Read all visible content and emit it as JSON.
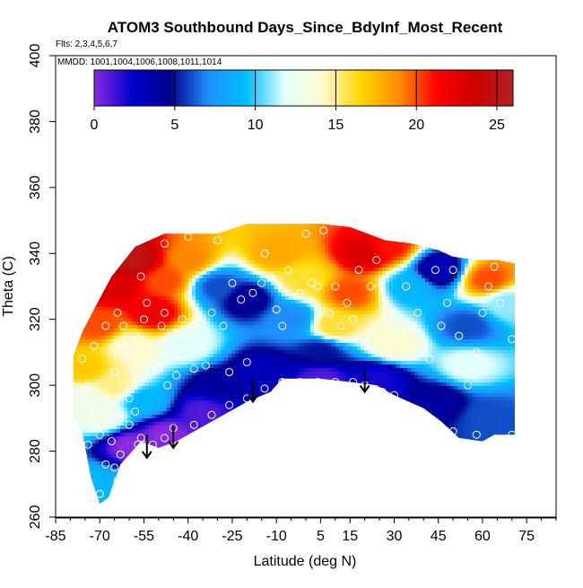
{
  "chart_data": {
    "type": "heatmap",
    "title": "ATOM3 Southbound Days_Since_BdyInf_Most_Recent",
    "flights_note": "Flts: 2,3,4,5,6,7",
    "dates_note": "MMDD: 1001,1004,1006,1008,1011,1014",
    "xlabel": "Latitude (deg N)",
    "ylabel": "Theta (C)",
    "xlim": [
      -85,
      85
    ],
    "ylim": [
      260,
      400
    ],
    "x_ticks": [
      -85,
      -70,
      -55,
      -40,
      -25,
      -10,
      5,
      15,
      30,
      45,
      60,
      75
    ],
    "y_ticks": [
      260,
      280,
      300,
      320,
      340,
      360,
      380,
      400
    ],
    "colorbar": {
      "min": 0,
      "max": 26,
      "ticks": [
        0,
        5,
        10,
        15,
        20,
        25
      ],
      "colors": [
        "#8a2be2",
        "#0000cd",
        "#00008b",
        "#1e90ff",
        "#00bfff",
        "#e0ffff",
        "#fffacd",
        "#ffd700",
        "#ff8c00",
        "#ff0000",
        "#cc0000",
        "#b22222"
      ]
    },
    "domain_outline": [
      [
        -79,
        309
      ],
      [
        -79,
        290
      ],
      [
        -76,
        286
      ],
      [
        -73,
        272
      ],
      [
        -70,
        264
      ],
      [
        -67,
        266
      ],
      [
        -63,
        276
      ],
      [
        -56,
        283
      ],
      [
        -50,
        281
      ],
      [
        -44,
        283
      ],
      [
        -36,
        287
      ],
      [
        -28,
        291
      ],
      [
        -20,
        295
      ],
      [
        -12,
        298
      ],
      [
        -8,
        302
      ],
      [
        5,
        302
      ],
      [
        15,
        301
      ],
      [
        24,
        300
      ],
      [
        30,
        297
      ],
      [
        40,
        293
      ],
      [
        46,
        289
      ],
      [
        52,
        284
      ],
      [
        60,
        283
      ],
      [
        64,
        285
      ],
      [
        71,
        285
      ],
      [
        71,
        337
      ],
      [
        65,
        338
      ],
      [
        58,
        338
      ],
      [
        50,
        339
      ],
      [
        45,
        341
      ],
      [
        36,
        343
      ],
      [
        27,
        344
      ],
      [
        15,
        348
      ],
      [
        5,
        349
      ],
      [
        -8,
        349
      ],
      [
        -20,
        349
      ],
      [
        -30,
        346
      ],
      [
        -40,
        346
      ],
      [
        -48,
        346
      ],
      [
        -58,
        342
      ],
      [
        -66,
        333
      ],
      [
        -72,
        323
      ],
      [
        -76,
        316
      ]
    ],
    "field_points": [
      {
        "lat": -75,
        "theta": 305,
        "days": 17
      },
      {
        "lat": -70,
        "theta": 318,
        "days": 20
      },
      {
        "lat": -65,
        "theta": 330,
        "days": 23
      },
      {
        "lat": -58,
        "theta": 338,
        "days": 25
      },
      {
        "lat": -52,
        "theta": 322,
        "days": 22
      },
      {
        "lat": -60,
        "theta": 312,
        "days": 14
      },
      {
        "lat": -48,
        "theta": 332,
        "days": 20
      },
      {
        "lat": -40,
        "theta": 338,
        "days": 19
      },
      {
        "lat": -30,
        "theta": 330,
        "days": 6
      },
      {
        "lat": -20,
        "theta": 326,
        "days": 4
      },
      {
        "lat": -10,
        "theta": 340,
        "days": 18
      },
      {
        "lat": 0,
        "theta": 332,
        "days": 16
      },
      {
        "lat": -5,
        "theta": 320,
        "days": 7
      },
      {
        "lat": 5,
        "theta": 310,
        "days": 5
      },
      {
        "lat": 20,
        "theta": 340,
        "days": 23
      },
      {
        "lat": 28,
        "theta": 342,
        "days": 21
      },
      {
        "lat": 15,
        "theta": 328,
        "days": 20
      },
      {
        "lat": 35,
        "theta": 330,
        "days": 9
      },
      {
        "lat": 45,
        "theta": 335,
        "days": 3
      },
      {
        "lat": 55,
        "theta": 318,
        "days": 6
      },
      {
        "lat": 62,
        "theta": 332,
        "days": 20
      },
      {
        "lat": 68,
        "theta": 325,
        "days": 11
      },
      {
        "lat": -40,
        "theta": 312,
        "days": 12
      },
      {
        "lat": -30,
        "theta": 300,
        "days": 4
      },
      {
        "lat": -15,
        "theta": 304,
        "days": 3
      },
      {
        "lat": 5,
        "theta": 302,
        "days": 1
      },
      {
        "lat": 25,
        "theta": 302,
        "days": 2
      },
      {
        "lat": 45,
        "theta": 295,
        "days": 4
      },
      {
        "lat": 62,
        "theta": 290,
        "days": 6
      },
      {
        "lat": -55,
        "theta": 295,
        "days": 9
      },
      {
        "lat": -68,
        "theta": 290,
        "days": 13
      },
      {
        "lat": -60,
        "theta": 282,
        "days": 0
      },
      {
        "lat": -48,
        "theta": 285,
        "days": 0
      },
      {
        "lat": -72,
        "theta": 270,
        "days": 9
      },
      {
        "lat": -35,
        "theta": 292,
        "days": 1
      },
      {
        "lat": 10,
        "theta": 318,
        "days": 16
      },
      {
        "lat": -75,
        "theta": 296,
        "days": 13
      },
      {
        "lat": -65,
        "theta": 300,
        "days": 15
      },
      {
        "lat": 30,
        "theta": 312,
        "days": 14
      },
      {
        "lat": 55,
        "theta": 306,
        "days": 12
      }
    ],
    "observations": [
      {
        "lat": -70,
        "theta": 267
      },
      {
        "lat": -68,
        "theta": 276
      },
      {
        "lat": -66,
        "theta": 283
      },
      {
        "lat": -65,
        "theta": 275
      },
      {
        "lat": -63,
        "theta": 279
      },
      {
        "lat": -60,
        "theta": 288
      },
      {
        "lat": -58,
        "theta": 292
      },
      {
        "lat": -57,
        "theta": 282
      },
      {
        "lat": -56,
        "theta": 284
      },
      {
        "lat": -55,
        "theta": 282
      },
      {
        "lat": -52,
        "theta": 282
      },
      {
        "lat": -51,
        "theta": 279
      },
      {
        "lat": -48,
        "theta": 284
      },
      {
        "lat": -45,
        "theta": 287
      },
      {
        "lat": -60,
        "theta": 296
      },
      {
        "lat": -62,
        "theta": 300
      },
      {
        "lat": -65,
        "theta": 304
      },
      {
        "lat": -68,
        "theta": 296
      },
      {
        "lat": -72,
        "theta": 293
      },
      {
        "lat": -74,
        "theta": 300
      },
      {
        "lat": -76,
        "theta": 308
      },
      {
        "lat": -72,
        "theta": 312
      },
      {
        "lat": -68,
        "theta": 318
      },
      {
        "lat": -64,
        "theta": 322
      },
      {
        "lat": -62,
        "theta": 318
      },
      {
        "lat": -60,
        "theta": 310
      },
      {
        "lat": -58,
        "theta": 304
      },
      {
        "lat": -57,
        "theta": 314
      },
      {
        "lat": -55,
        "theta": 320
      },
      {
        "lat": -54,
        "theta": 325
      },
      {
        "lat": -53,
        "theta": 312
      },
      {
        "lat": -51,
        "theta": 306
      },
      {
        "lat": -49,
        "theta": 318
      },
      {
        "lat": -48,
        "theta": 322
      },
      {
        "lat": -46,
        "theta": 312
      },
      {
        "lat": -44,
        "theta": 309
      },
      {
        "lat": -42,
        "theta": 320
      },
      {
        "lat": -40,
        "theta": 327
      },
      {
        "lat": -38,
        "theta": 318
      },
      {
        "lat": -36,
        "theta": 312
      },
      {
        "lat": -32,
        "theta": 322
      },
      {
        "lat": -28,
        "theta": 318
      },
      {
        "lat": -25,
        "theta": 331
      },
      {
        "lat": -22,
        "theta": 326
      },
      {
        "lat": -18,
        "theta": 328
      },
      {
        "lat": -14,
        "theta": 340
      },
      {
        "lat": -12,
        "theta": 333
      },
      {
        "lat": -10,
        "theta": 323
      },
      {
        "lat": -8,
        "theta": 318
      },
      {
        "lat": -6,
        "theta": 335
      },
      {
        "lat": -2,
        "theta": 328
      },
      {
        "lat": 0,
        "theta": 346
      },
      {
        "lat": 2,
        "theta": 331
      },
      {
        "lat": 4,
        "theta": 330
      },
      {
        "lat": 6,
        "theta": 347
      },
      {
        "lat": 8,
        "theta": 322
      },
      {
        "lat": 10,
        "theta": 330
      },
      {
        "lat": 12,
        "theta": 318
      },
      {
        "lat": 14,
        "theta": 325
      },
      {
        "lat": 16,
        "theta": 320
      },
      {
        "lat": 18,
        "theta": 335
      },
      {
        "lat": 20,
        "theta": 312
      },
      {
        "lat": 22,
        "theta": 330
      },
      {
        "lat": 24,
        "theta": 338
      },
      {
        "lat": 26,
        "theta": 325
      },
      {
        "lat": 28,
        "theta": 310
      },
      {
        "lat": 30,
        "theta": 322
      },
      {
        "lat": 32,
        "theta": 315
      },
      {
        "lat": 34,
        "theta": 330
      },
      {
        "lat": 36,
        "theta": 318
      },
      {
        "lat": 38,
        "theta": 322
      },
      {
        "lat": 40,
        "theta": 310
      },
      {
        "lat": 42,
        "theta": 308
      },
      {
        "lat": 44,
        "theta": 335
      },
      {
        "lat": 46,
        "theta": 318
      },
      {
        "lat": 48,
        "theta": 325
      },
      {
        "lat": 50,
        "theta": 335
      },
      {
        "lat": 52,
        "theta": 315
      },
      {
        "lat": 55,
        "theta": 300
      },
      {
        "lat": 58,
        "theta": 310
      },
      {
        "lat": 60,
        "theta": 322
      },
      {
        "lat": 62,
        "theta": 330
      },
      {
        "lat": 64,
        "theta": 336
      },
      {
        "lat": 66,
        "theta": 325
      },
      {
        "lat": 70,
        "theta": 314
      },
      {
        "lat": 70,
        "theta": 285
      },
      {
        "lat": 58,
        "theta": 285
      },
      {
        "lat": 50,
        "theta": 286
      },
      {
        "lat": 45,
        "theta": 285
      },
      {
        "lat": 40,
        "theta": 290
      },
      {
        "lat": 35,
        "theta": 293
      },
      {
        "lat": 30,
        "theta": 297
      },
      {
        "lat": 26,
        "theta": 298
      },
      {
        "lat": 20,
        "theta": 300
      },
      {
        "lat": 16,
        "theta": 301
      },
      {
        "lat": 10,
        "theta": 301
      },
      {
        "lat": 4,
        "theta": 301
      },
      {
        "lat": -2,
        "theta": 301
      },
      {
        "lat": -8,
        "theta": 301
      },
      {
        "lat": -14,
        "theta": 299
      },
      {
        "lat": -20,
        "theta": 296
      },
      {
        "lat": -26,
        "theta": 294
      },
      {
        "lat": -32,
        "theta": 291
      },
      {
        "lat": -38,
        "theta": 288
      },
      {
        "lat": -64,
        "theta": 271
      },
      {
        "lat": -66,
        "theta": 290
      },
      {
        "lat": -70,
        "theta": 285
      },
      {
        "lat": -74,
        "theta": 282
      },
      {
        "lat": -50,
        "theta": 305
      },
      {
        "lat": -47,
        "theta": 300
      },
      {
        "lat": -44,
        "theta": 303
      },
      {
        "lat": -38,
        "theta": 305
      },
      {
        "lat": -34,
        "theta": 306
      },
      {
        "lat": -26,
        "theta": 304
      },
      {
        "lat": -20,
        "theta": 307
      },
      {
        "lat": -15,
        "theta": 331
      },
      {
        "lat": -30,
        "theta": 344
      },
      {
        "lat": -40,
        "theta": 345
      },
      {
        "lat": -48,
        "theta": 343
      },
      {
        "lat": -56,
        "theta": 333
      }
    ],
    "arrows": [
      {
        "lat": -54,
        "theta_start": 285,
        "theta_end": 278
      },
      {
        "lat": -45,
        "theta_start": 288,
        "theta_end": 281
      },
      {
        "lat": -18,
        "theta_start": 302,
        "theta_end": 295
      },
      {
        "lat": 20,
        "theta_start": 305,
        "theta_end": 298
      }
    ]
  }
}
